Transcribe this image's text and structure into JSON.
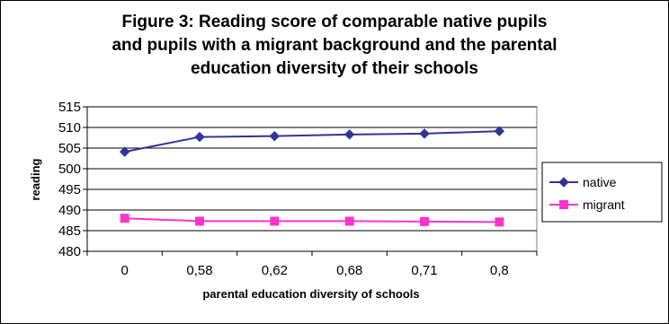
{
  "chart_data": {
    "type": "line",
    "title": [
      "Figure 3: Reading score of comparable native pupils",
      "and pupils with a migrant background and the parental",
      "education diversity of their schools"
    ],
    "xlabel": "parental education diversity of schools",
    "ylabel": "reading",
    "categories": [
      "0",
      "0,58",
      "0,62",
      "0,68",
      "0,71",
      "0,8"
    ],
    "ylim": [
      480,
      515
    ],
    "yticks": [
      "480",
      "485",
      "490",
      "495",
      "500",
      "505",
      "510",
      "515"
    ],
    "grid": "horizontal",
    "legend_position": "right",
    "series": [
      {
        "name": "native",
        "color": "#333399",
        "marker": "diamond",
        "values": [
          504.1,
          507.7,
          507.9,
          508.3,
          508.5,
          509.1
        ]
      },
      {
        "name": "migrant",
        "color": "#FF33CC",
        "marker": "square",
        "values": [
          488.0,
          487.3,
          487.3,
          487.3,
          487.2,
          487.1
        ]
      }
    ]
  }
}
